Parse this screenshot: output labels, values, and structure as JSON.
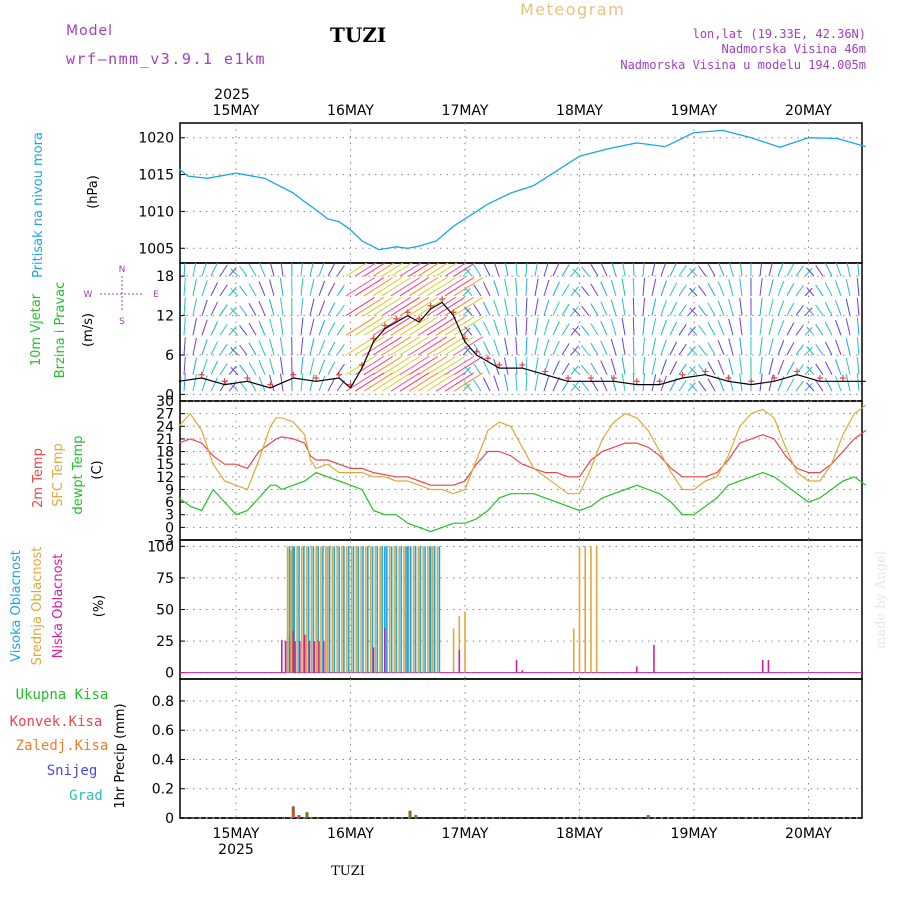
{
  "header": {
    "model_label": "Model",
    "model_name": "wrf—nmm_v3.9.1 e1km",
    "station": "TUZI",
    "product": "Meteogram",
    "lonlat": "lon,lat (19.33E, 42.36N)",
    "elevation": "Nadmorska Visina 46m",
    "model_elevation": "Nadmorska Visina u modelu 194.005m",
    "footer_station": "TUZI",
    "credit": "made by Angel"
  },
  "colors": {
    "pressure": "#1aa7e8",
    "temp2m": "#e8484a",
    "sfc_temp": "#e0a83a",
    "dewpoint": "#22c02a",
    "cloud_high": "#1aa7e8",
    "cloud_mid": "#e0a83a",
    "cloud_low": "#d1209a",
    "precip_total": "#22c02a",
    "precip_conv": "#e8484a",
    "precip_frozen": "#f07c2a",
    "snow": "#4a48e0",
    "hail": "#28c0b8",
    "header_purple": "#a040c0",
    "header_orange": "#e8c080"
  },
  "time_axis": {
    "year": "2025",
    "days": [
      "15MAY",
      "16MAY",
      "17MAY",
      "18MAY",
      "19MAY",
      "20MAY"
    ]
  },
  "panels": {
    "pressure": {
      "ylabel": "Pritisak na nivou mora",
      "unit": "(hPa)",
      "ticks": [
        "1020",
        "1015",
        "1010",
        "1005"
      ]
    },
    "wind": {
      "ylabel1": "10m Vjetar",
      "ylabel2": "Brzina i Pravac",
      "unit": "(m/s)",
      "ticks": [
        "18",
        "12",
        "6",
        "0"
      ],
      "compass": {
        "n": "N",
        "s": "S",
        "e": "E",
        "w": "W"
      }
    },
    "temperature": {
      "ylabel1": "2m Temp",
      "ylabel2": "SFC Temp",
      "ylabel3": "dewpt Temp",
      "unit": "(C)",
      "ticks": [
        "30",
        "27",
        "24",
        "21",
        "18",
        "15",
        "12",
        "9",
        "6",
        "3",
        "0",
        "−3"
      ]
    },
    "clouds": {
      "ylabel1": "Visoka Oblacnost",
      "ylabel2": "Srednja Oblacnost",
      "ylabel3": "Niska Oblacnost",
      "unit": "(%)",
      "ticks": [
        "100",
        "75",
        "50",
        "25",
        "0"
      ]
    },
    "precip": {
      "ylabel": "1hr Precip (mm)",
      "ticks": [
        "0.8",
        "0.6",
        "0.4",
        "0.2",
        "0"
      ],
      "legend": [
        "Ukupna Kisa",
        "Konvek.Kisa",
        "Zaledj.Kisa",
        "Snijeg",
        "Grad"
      ]
    }
  },
  "chart_data": [
    {
      "type": "line",
      "title": "Pritisak na nivou mora",
      "ylabel": "(hPa)",
      "ylim": [
        1003,
        1022
      ],
      "x_unit": "days since 15MAY 00UTC",
      "x": [
        -0.5,
        -0.42,
        -0.25,
        0,
        0.25,
        0.5,
        0.6,
        0.7,
        0.8,
        0.9,
        1.0,
        1.1,
        1.25,
        1.4,
        1.5,
        1.6,
        1.75,
        1.9,
        2.0,
        2.2,
        2.4,
        2.6,
        2.8,
        3.0,
        3.25,
        3.5,
        3.75,
        4.0,
        4.25,
        4.5,
        4.75,
        5.0,
        5.25,
        5.5
      ],
      "series": [
        {
          "name": "Pritisak na nivou mora",
          "values": [
            1015.8,
            1014.8,
            1014.5,
            1015.2,
            1014.5,
            1012.5,
            1011.3,
            1010.2,
            1009.0,
            1008.6,
            1007.5,
            1006.0,
            1004.8,
            1005.2,
            1005.0,
            1005.3,
            1006.0,
            1008.0,
            1009.0,
            1011.0,
            1012.5,
            1013.5,
            1015.5,
            1017.5,
            1018.5,
            1019.3,
            1018.8,
            1020.7,
            1021.0,
            1020.0,
            1018.7,
            1020.0,
            1019.9,
            1018.8
          ]
        }
      ]
    },
    {
      "type": "line",
      "title": "10m Vjetar Brzina i Pravac",
      "ylabel": "(m/s)",
      "ylim": [
        -1,
        20
      ],
      "x_unit": "days since 15MAY 00UTC",
      "x": [
        -0.5,
        -0.3,
        -0.1,
        0.1,
        0.3,
        0.5,
        0.7,
        0.9,
        1.0,
        1.1,
        1.2,
        1.3,
        1.4,
        1.5,
        1.6,
        1.7,
        1.8,
        1.9,
        2.0,
        2.1,
        2.2,
        2.3,
        2.5,
        2.7,
        2.9,
        3.1,
        3.3,
        3.5,
        3.7,
        3.9,
        4.1,
        4.3,
        4.5,
        4.7,
        4.9,
        5.1,
        5.3,
        5.5
      ],
      "series": [
        {
          "name": "10m Vjetar",
          "values": [
            2,
            2.5,
            1.5,
            2,
            1,
            2.5,
            2,
            2.5,
            1,
            4,
            8,
            10,
            11,
            12,
            11,
            13,
            14,
            12,
            8,
            6,
            5,
            4,
            4,
            3,
            2,
            2,
            2,
            1.5,
            1.5,
            2.5,
            3,
            2,
            1.5,
            2,
            3,
            2,
            2,
            2
          ]
        }
      ]
    },
    {
      "type": "line",
      "title": "2m Temp / SFC Temp / dewpt Temp",
      "ylabel": "(C)",
      "ylim": [
        -3,
        30
      ],
      "x_unit": "days since 15MAY 00UTC",
      "x": [
        -0.5,
        -0.4,
        -0.3,
        -0.2,
        -0.1,
        0,
        0.1,
        0.2,
        0.3,
        0.35,
        0.4,
        0.5,
        0.6,
        0.65,
        0.7,
        0.8,
        0.9,
        1.0,
        1.1,
        1.2,
        1.3,
        1.4,
        1.5,
        1.6,
        1.7,
        1.8,
        1.9,
        2.0,
        2.1,
        2.2,
        2.3,
        2.4,
        2.5,
        2.6,
        2.7,
        2.8,
        2.9,
        3.0,
        3.1,
        3.2,
        3.3,
        3.4,
        3.5,
        3.6,
        3.7,
        3.8,
        3.9,
        4.0,
        4.1,
        4.2,
        4.3,
        4.4,
        4.5,
        4.6,
        4.7,
        4.8,
        4.9,
        5.0,
        5.1,
        5.2,
        5.3,
        5.4,
        5.5
      ],
      "series": [
        {
          "name": "2m Temp",
          "values": [
            20,
            21,
            20,
            17,
            15,
            15,
            14,
            18,
            20,
            21,
            21.5,
            21,
            20,
            17,
            16,
            16,
            15,
            14,
            14,
            13,
            12.5,
            12,
            12,
            11,
            10,
            10,
            10,
            11,
            15,
            18,
            18,
            17,
            15,
            14,
            13,
            13,
            12,
            12,
            16,
            18,
            19,
            20,
            20,
            19,
            17,
            14,
            12,
            12,
            12,
            13,
            16,
            20,
            21,
            22,
            21,
            17,
            14,
            13,
            13,
            15,
            18,
            21,
            23
          ]
        },
        {
          "name": "SFC Temp",
          "values": [
            24,
            27,
            23,
            15,
            11,
            10,
            9,
            16,
            24,
            26,
            26,
            25,
            22,
            16,
            14,
            15,
            13,
            13,
            13,
            12,
            12,
            11,
            11,
            10,
            9,
            9,
            8,
            9,
            16,
            23,
            25,
            24,
            19,
            14,
            12,
            10,
            8,
            8,
            14,
            21,
            25,
            27,
            26,
            23,
            18,
            13,
            9,
            9,
            11,
            12,
            17,
            24,
            27,
            28,
            26,
            19,
            13,
            11,
            11,
            15,
            22,
            27,
            29
          ]
        },
        {
          "name": "dewpt Temp",
          "values": [
            7,
            5,
            4,
            9,
            6,
            3,
            4,
            7,
            10,
            10,
            9,
            10,
            11,
            12,
            13,
            12,
            11,
            10,
            9,
            4,
            3,
            3,
            1,
            0,
            -1,
            0,
            1,
            1,
            2,
            4,
            7,
            8,
            8,
            8,
            7,
            6,
            5,
            4,
            5,
            7,
            8,
            9,
            10,
            9,
            8,
            6,
            3,
            3,
            5,
            7,
            10,
            11,
            12,
            13,
            12,
            10,
            8,
            6,
            7,
            9,
            11,
            12,
            10
          ]
        }
      ]
    },
    {
      "type": "bar",
      "title": "Visoka / Srednja / Niska Oblacnost",
      "ylabel": "(%)",
      "ylim": [
        -5,
        105
      ],
      "x_unit": "days since 15MAY 00UTC",
      "bar_groups": [
        {
          "x_start": 0.45,
          "x_end": 0.8,
          "step": 0.0417,
          "high": 100,
          "mid": 100,
          "low": 25
        },
        {
          "x_start": 0.8,
          "x_end": 1.8,
          "step": 0.0417,
          "high": 100,
          "mid": 100,
          "low": 0
        }
      ],
      "series": [
        {
          "name": "Visoka Oblacnost",
          "points": [
            [
              0.45,
              28
            ],
            [
              0.5,
              100
            ],
            [
              1.3,
              100
            ],
            [
              1.5,
              100
            ],
            [
              1.7,
              100
            ]
          ]
        },
        {
          "name": "Srednja Oblacnost",
          "points": [
            [
              0.45,
              30
            ],
            [
              0.48,
              97
            ],
            [
              1.9,
              35
            ],
            [
              1.95,
              45
            ],
            [
              2.0,
              48
            ],
            [
              2.95,
              35
            ],
            [
              3.0,
              100
            ],
            [
              3.05,
              100
            ],
            [
              3.1,
              100
            ],
            [
              3.15,
              100
            ]
          ]
        },
        {
          "name": "Niska Oblacnost",
          "points": [
            [
              0.4,
              26
            ],
            [
              0.5,
              33
            ],
            [
              0.6,
              30
            ],
            [
              1.2,
              20
            ],
            [
              1.3,
              35
            ],
            [
              1.95,
              18
            ],
            [
              2.45,
              10
            ],
            [
              2.5,
              2
            ],
            [
              3.5,
              5
            ],
            [
              3.65,
              22
            ],
            [
              4.6,
              10
            ],
            [
              4.65,
              10
            ]
          ]
        }
      ]
    },
    {
      "type": "bar",
      "title": "1hr Precip",
      "ylabel": "1hr Precip (mm)",
      "ylim": [
        0,
        0.95
      ],
      "x_unit": "days since 15MAY 00UTC",
      "series": [
        {
          "name": "Ukupna Kisa",
          "points": [
            [
              0.5,
              0.08
            ],
            [
              0.55,
              0.02
            ],
            [
              0.62,
              0.04
            ],
            [
              1.52,
              0.05
            ],
            [
              1.57,
              0.02
            ],
            [
              3.6,
              0.02
            ]
          ]
        },
        {
          "name": "Konvek.Kisa",
          "points": [
            [
              0.5,
              0.03
            ]
          ]
        }
      ]
    }
  ]
}
